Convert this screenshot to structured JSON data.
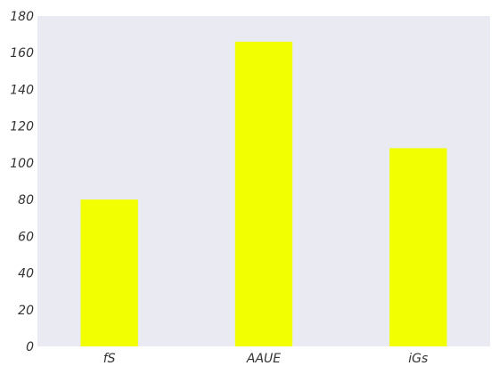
{
  "chart_data": {
    "type": "bar",
    "categories": [
      "fS",
      "AAUE",
      "iGs"
    ],
    "values": [
      80,
      166,
      108
    ],
    "ylim": [
      0,
      180
    ],
    "yticks": [
      0,
      20,
      40,
      60,
      80,
      100,
      120,
      140,
      160,
      180
    ],
    "grid": false,
    "colors": {
      "bar": "#f2ff00",
      "plot_background": "#eaeaf2",
      "page_background": "#ffffff",
      "text": "#333333"
    }
  }
}
